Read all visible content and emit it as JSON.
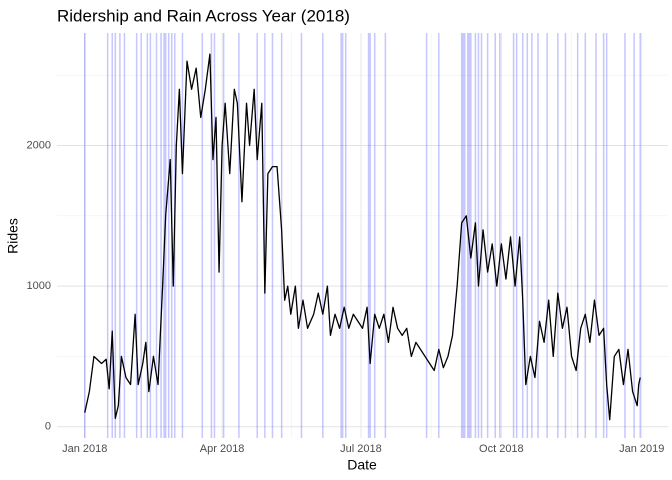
{
  "chart_data": {
    "type": "line",
    "title": "Ridership and Rain Across Year (2018)",
    "xlabel": "Date",
    "ylabel": "Rides",
    "x": [
      0,
      3,
      6,
      8,
      11,
      14,
      16,
      18,
      20,
      22,
      24,
      27,
      30,
      33,
      35,
      38,
      40,
      42,
      45,
      48,
      51,
      53,
      56,
      58,
      60,
      62,
      64,
      67,
      70,
      73,
      76,
      79,
      82,
      84,
      86,
      88,
      90,
      92,
      95,
      98,
      100,
      103,
      106,
      108,
      111,
      113,
      116,
      118,
      120,
      123,
      126,
      129,
      131,
      133,
      135,
      138,
      140,
      143,
      146,
      150,
      153,
      156,
      159,
      161,
      164,
      167,
      170,
      173,
      176,
      179,
      182,
      185,
      187,
      190,
      193,
      196,
      199,
      202,
      205,
      208,
      211,
      214,
      217,
      220,
      223,
      226,
      229,
      232,
      235,
      238,
      241,
      244,
      247,
      250,
      253,
      256,
      258,
      261,
      264,
      267,
      270,
      273,
      276,
      279,
      282,
      285,
      287,
      289,
      292,
      295,
      298,
      301,
      304,
      307,
      310,
      313,
      316,
      319,
      322,
      325,
      328,
      331,
      334,
      337,
      340,
      342,
      344,
      347,
      350,
      353,
      356,
      359,
      362,
      363,
      364
    ],
    "values": [
      100,
      250,
      500,
      480,
      450,
      480,
      270,
      680,
      60,
      150,
      500,
      350,
      300,
      800,
      300,
      450,
      600,
      250,
      500,
      300,
      1000,
      1500,
      1900,
      1000,
      2000,
      2400,
      1800,
      2600,
      2400,
      2550,
      2200,
      2400,
      2650,
      1900,
      2200,
      1100,
      2000,
      2300,
      1800,
      2400,
      2300,
      1600,
      2300,
      2000,
      2400,
      1900,
      2300,
      950,
      1800,
      1850,
      1850,
      1400,
      900,
      1000,
      800,
      1000,
      700,
      900,
      700,
      800,
      950,
      800,
      1000,
      650,
      800,
      700,
      850,
      700,
      800,
      750,
      700,
      850,
      450,
      800,
      700,
      800,
      600,
      850,
      700,
      650,
      700,
      500,
      600,
      550,
      500,
      450,
      400,
      550,
      420,
      500,
      650,
      1000,
      1450,
      1500,
      1200,
      1450,
      1000,
      1400,
      1100,
      1300,
      1000,
      1300,
      1050,
      1350,
      1000,
      1350,
      900,
      300,
      500,
      350,
      750,
      600,
      900,
      500,
      950,
      700,
      850,
      500,
      400,
      700,
      800,
      600,
      900,
      650,
      700,
      300,
      50,
      500,
      550,
      300,
      550,
      250,
      150,
      300,
      350
    ],
    "color": "#000000",
    "rain_days": [
      0,
      15,
      18,
      20,
      23,
      26,
      34,
      37,
      41,
      43,
      47,
      50,
      52,
      53,
      55,
      57,
      59,
      64,
      77,
      83,
      85,
      91,
      101,
      113,
      118,
      123,
      129,
      142,
      156,
      168,
      169,
      171,
      186,
      187,
      190,
      197,
      224,
      232,
      247,
      248,
      249,
      251,
      252,
      253,
      256,
      258,
      260,
      264,
      269,
      272,
      281,
      283,
      287,
      290,
      293,
      297,
      303,
      310,
      315,
      323,
      328,
      335,
      340,
      342,
      354,
      360,
      364
    ],
    "rain_color": "#0000ff",
    "xlim": [
      -18.2,
      382.2
    ],
    "xticks": [
      {
        "value": 0,
        "label": "Jan 2018"
      },
      {
        "value": 90,
        "label": "Apr 2018"
      },
      {
        "value": 181,
        "label": "Jul 2018"
      },
      {
        "value": 273,
        "label": "Oct 2018"
      },
      {
        "value": 365,
        "label": "Jan 2019"
      }
    ],
    "xticks_minor": [
      45,
      135.5,
      227,
      319
    ],
    "ylim": [
      -80,
      2800
    ],
    "yticks": [
      0,
      1000,
      2000
    ],
    "yticks_minor": [
      500,
      1500,
      2500
    ],
    "grid": true
  }
}
